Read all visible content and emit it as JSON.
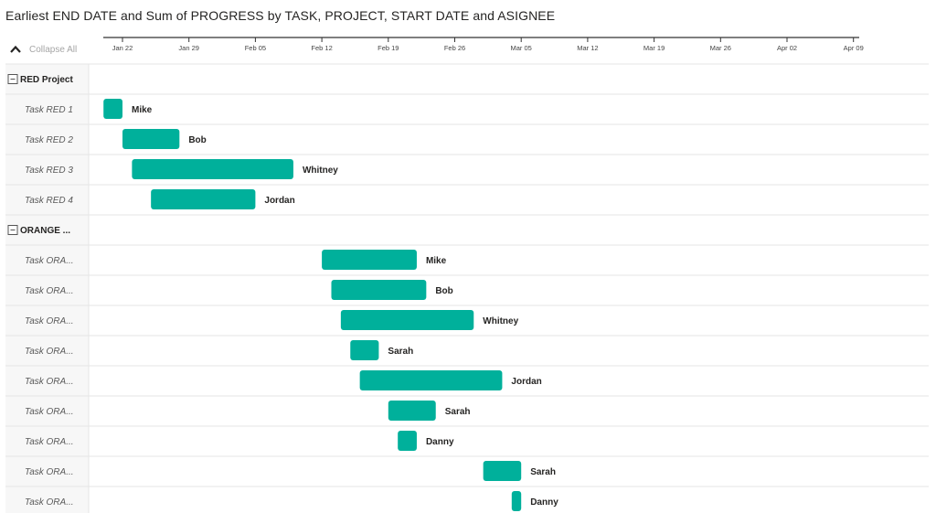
{
  "title": "Earliest END DATE and Sum of PROGRESS by TASK, PROJECT, START DATE and ASIGNEE",
  "collapse_all_label": "Collapse All",
  "colors": {
    "bar": "#00b09b",
    "grid": "#e6e6e6",
    "header_bg": "#f7f7f7"
  },
  "icons": {
    "collapse": "chevron-up-icon",
    "group_toggle": "minus-box-icon"
  },
  "chart_data": {
    "type": "gantt",
    "axis_ticks": [
      "Jan 22",
      "Jan 29",
      "Feb 05",
      "Feb 12",
      "Feb 19",
      "Feb 26",
      "Mar 05",
      "Mar 12",
      "Mar 19",
      "Mar 26",
      "Apr 02",
      "Apr 09"
    ],
    "axis_range": [
      "2024-01-19",
      "2024-04-09"
    ],
    "rows": [
      {
        "kind": "group",
        "label": "RED Project"
      },
      {
        "kind": "task",
        "label": "Task RED 1",
        "start": "2024-01-20",
        "end": "2024-01-22",
        "assignee": "Mike"
      },
      {
        "kind": "task",
        "label": "Task RED 2",
        "start": "2024-01-22",
        "end": "2024-01-28",
        "assignee": "Bob"
      },
      {
        "kind": "task",
        "label": "Task RED 3",
        "start": "2024-01-23",
        "end": "2024-02-09",
        "assignee": "Whitney"
      },
      {
        "kind": "task",
        "label": "Task RED 4",
        "start": "2024-01-25",
        "end": "2024-02-05",
        "assignee": "Jordan"
      },
      {
        "kind": "group",
        "label": "ORANGE ..."
      },
      {
        "kind": "task",
        "label": "Task ORA...",
        "start": "2024-02-12",
        "end": "2024-02-22",
        "assignee": "Mike"
      },
      {
        "kind": "task",
        "label": "Task ORA...",
        "start": "2024-02-13",
        "end": "2024-02-23",
        "assignee": "Bob"
      },
      {
        "kind": "task",
        "label": "Task ORA...",
        "start": "2024-02-14",
        "end": "2024-02-28",
        "assignee": "Whitney"
      },
      {
        "kind": "task",
        "label": "Task ORA...",
        "start": "2024-02-15",
        "end": "2024-02-18",
        "assignee": "Sarah"
      },
      {
        "kind": "task",
        "label": "Task ORA...",
        "start": "2024-02-16",
        "end": "2024-03-02",
        "assignee": "Jordan"
      },
      {
        "kind": "task",
        "label": "Task ORA...",
        "start": "2024-02-19",
        "end": "2024-02-24",
        "assignee": "Sarah"
      },
      {
        "kind": "task",
        "label": "Task ORA...",
        "start": "2024-02-20",
        "end": "2024-02-22",
        "assignee": "Danny"
      },
      {
        "kind": "task",
        "label": "Task ORA...",
        "start": "2024-02-29",
        "end": "2024-03-04",
        "assignee": "Sarah"
      },
      {
        "kind": "task",
        "label": "Task ORA...",
        "start": "2024-03-03",
        "end": "2024-03-04",
        "assignee": "Danny"
      }
    ]
  }
}
